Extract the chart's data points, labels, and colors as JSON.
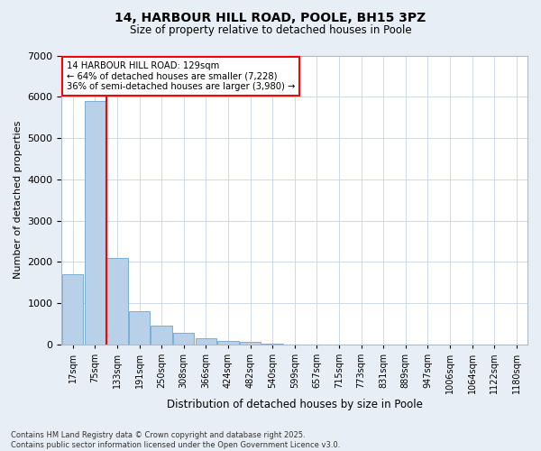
{
  "title1": "14, HARBOUR HILL ROAD, POOLE, BH15 3PZ",
  "title2": "Size of property relative to detached houses in Poole",
  "xlabel": "Distribution of detached houses by size in Poole",
  "ylabel": "Number of detached properties",
  "categories": [
    "17sqm",
    "75sqm",
    "133sqm",
    "191sqm",
    "250sqm",
    "308sqm",
    "366sqm",
    "424sqm",
    "482sqm",
    "540sqm",
    "599sqm",
    "657sqm",
    "715sqm",
    "773sqm",
    "831sqm",
    "889sqm",
    "947sqm",
    "1006sqm",
    "1064sqm",
    "1122sqm",
    "1180sqm"
  ],
  "values": [
    1700,
    5900,
    2100,
    800,
    450,
    280,
    150,
    90,
    65,
    30,
    8,
    3,
    2,
    0,
    0,
    0,
    0,
    0,
    0,
    0,
    0
  ],
  "bar_color": "#b8d0e8",
  "bar_edge_color": "#7aaed6",
  "vline_index": 1.5,
  "vline_color": "red",
  "annotation_title": "14 HARBOUR HILL ROAD: 129sqm",
  "annotation_line1": "← 64% of detached houses are smaller (7,228)",
  "annotation_line2": "36% of semi-detached houses are larger (3,980) →",
  "annotation_box_color": "red",
  "ylim": [
    0,
    7000
  ],
  "yticks": [
    0,
    1000,
    2000,
    3000,
    4000,
    5000,
    6000,
    7000
  ],
  "footer1": "Contains HM Land Registry data © Crown copyright and database right 2025.",
  "footer2": "Contains public sector information licensed under the Open Government Licence v3.0.",
  "background_color": "#e8eef5",
  "plot_bg_color": "#ffffff",
  "grid_color": "#c5d5e8"
}
